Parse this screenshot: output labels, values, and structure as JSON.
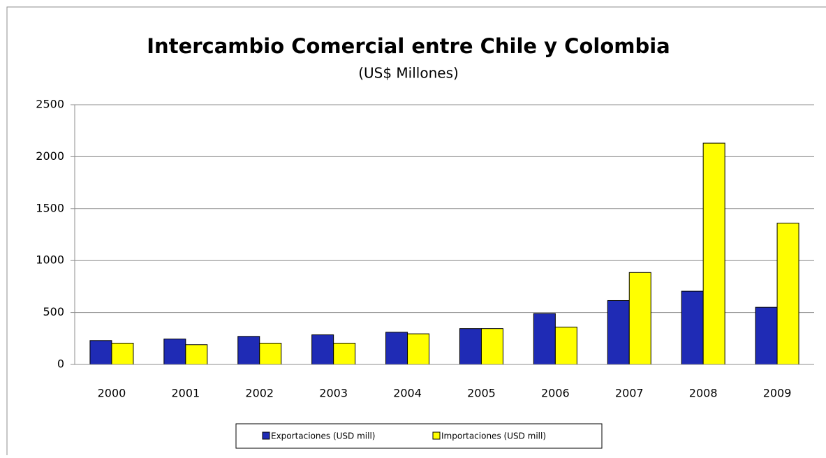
{
  "chart_data": {
    "type": "bar",
    "title": "Intercambio Comercial entre Chile y Colombia",
    "subtitle": "(US$ Millones)",
    "categories": [
      "2000",
      "2001",
      "2002",
      "2003",
      "2004",
      "2005",
      "2006",
      "2007",
      "2008",
      "2009"
    ],
    "series": [
      {
        "name": "Exportaciones  (USD mill)",
        "color": "#1f2bb5",
        "values": [
          230,
          245,
          270,
          285,
          310,
          345,
          490,
          615,
          705,
          550
        ]
      },
      {
        "name": "Importaciones  (USD mill)",
        "color": "#ffff00",
        "values": [
          205,
          190,
          205,
          205,
          295,
          345,
          360,
          885,
          2130,
          1360
        ]
      }
    ],
    "ylim": [
      0,
      2500
    ],
    "yticks": [
      0,
      500,
      1000,
      1500,
      2000,
      2500
    ],
    "grid": true
  }
}
